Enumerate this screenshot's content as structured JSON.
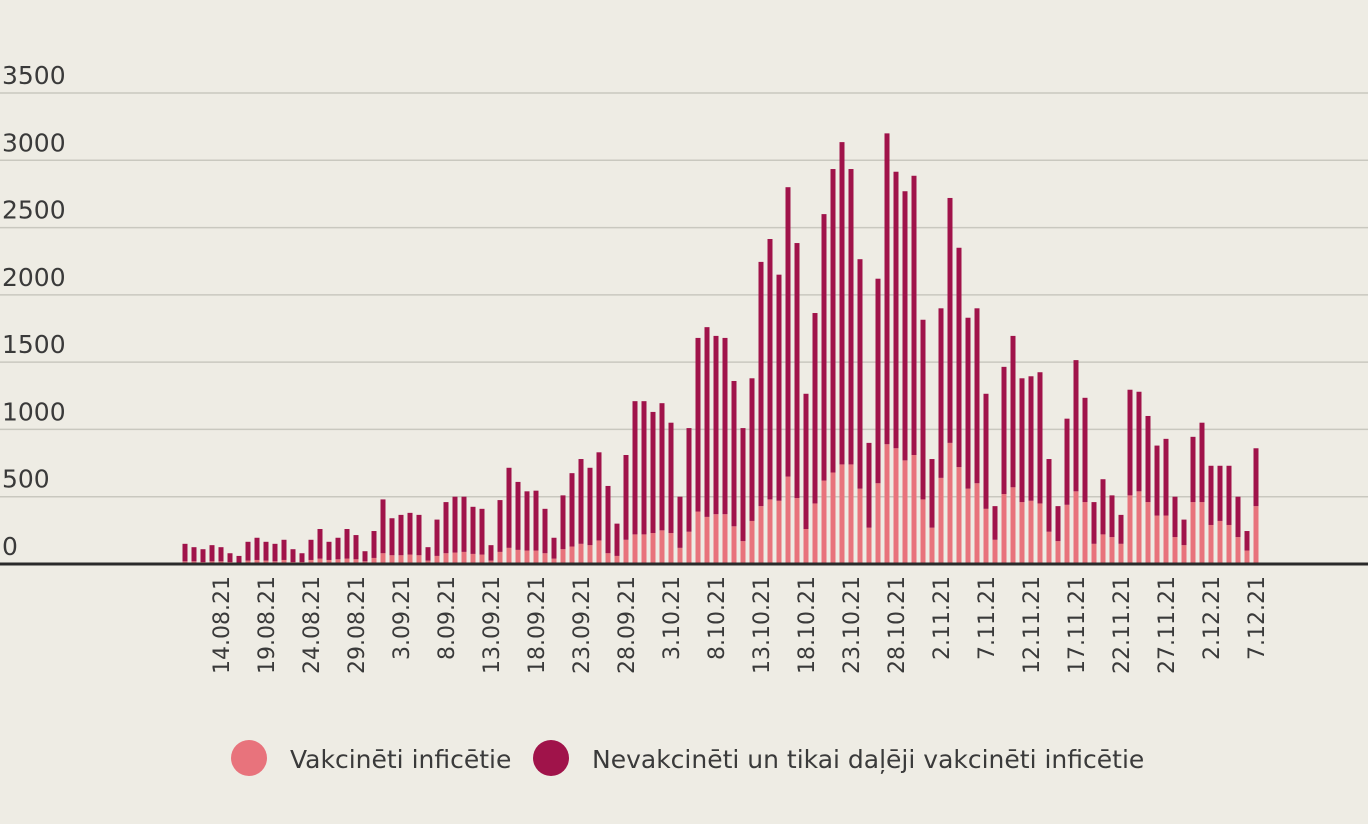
{
  "chart_data": {
    "type": "stacked_bar",
    "categories": [
      null,
      null,
      null,
      null,
      "14.08.21",
      null,
      null,
      null,
      null,
      "19.08.21",
      null,
      null,
      null,
      null,
      "24.08.21",
      null,
      null,
      null,
      null,
      "29.08.21",
      null,
      null,
      null,
      null,
      "3.09.21",
      null,
      null,
      null,
      null,
      "8.09.21",
      null,
      null,
      null,
      null,
      "13.09.21",
      null,
      null,
      null,
      null,
      "18.09.21",
      null,
      null,
      null,
      null,
      "23.09.21",
      null,
      null,
      null,
      null,
      "28.09.21",
      null,
      null,
      null,
      null,
      "3.10.21",
      null,
      null,
      null,
      null,
      "8.10.21",
      null,
      null,
      null,
      null,
      "13.10.21",
      null,
      null,
      null,
      null,
      "18.10.21",
      null,
      null,
      null,
      null,
      "23.10.21",
      null,
      null,
      null,
      null,
      "28.10.21",
      null,
      null,
      null,
      null,
      "2.11.21",
      null,
      null,
      null,
      null,
      "7.11.21",
      null,
      null,
      null,
      null,
      "12.11.21",
      null,
      null,
      null,
      null,
      "17.11.21",
      null,
      null,
      null,
      null,
      "22.11.21",
      null,
      null,
      null,
      null,
      "27.11.21",
      null,
      null,
      null,
      null,
      "2.12.21",
      null,
      null,
      null,
      null,
      "7.12.21"
    ],
    "series": [
      {
        "name": "Vakcinēti inficētie",
        "color": "#e8737c",
        "values": [
          20,
          20,
          15,
          20,
          20,
          15,
          10,
          25,
          30,
          25,
          20,
          30,
          15,
          15,
          30,
          40,
          30,
          35,
          40,
          35,
          20,
          45,
          80,
          65,
          65,
          70,
          65,
          25,
          60,
          80,
          85,
          90,
          75,
          70,
          25,
          90,
          120,
          105,
          100,
          100,
          80,
          40,
          110,
          130,
          150,
          140,
          175,
          80,
          60,
          180,
          220,
          220,
          230,
          250,
          230,
          120,
          240,
          390,
          350,
          370,
          370,
          280,
          170,
          320,
          430,
          480,
          470,
          650,
          490,
          260,
          450,
          620,
          680,
          740,
          740,
          560,
          270,
          600,
          890,
          860,
          770,
          810,
          480,
          270,
          640,
          900,
          720,
          560,
          600,
          410,
          180,
          520,
          570,
          460,
          470,
          450,
          240,
          170,
          440,
          540,
          460,
          150,
          220,
          200,
          150,
          510,
          540,
          460,
          360,
          360,
          200,
          140,
          460,
          460,
          290,
          320,
          290,
          200,
          100,
          430
        ]
      },
      {
        "name": "Nevakcinēti un tikai daļēji vakcinēti inficētie",
        "color": "#a0134a",
        "values": [
          130,
          105,
          95,
          120,
          105,
          65,
          50,
          140,
          165,
          140,
          130,
          150,
          95,
          65,
          150,
          220,
          135,
          160,
          220,
          180,
          75,
          200,
          400,
          275,
          300,
          310,
          300,
          100,
          270,
          380,
          415,
          410,
          350,
          340,
          115,
          385,
          595,
          505,
          440,
          445,
          330,
          155,
          400,
          545,
          630,
          575,
          655,
          500,
          240,
          630,
          990,
          990,
          900,
          945,
          820,
          380,
          770,
          1290,
          1410,
          1325,
          1310,
          1080,
          840,
          1060,
          1815,
          1935,
          1680,
          2150,
          1895,
          1005,
          1415,
          1980,
          2255,
          2395,
          2195,
          1705,
          630,
          1520,
          2310,
          2055,
          2000,
          2075,
          1335,
          510,
          1260,
          1820,
          1630,
          1270,
          1300,
          855,
          250,
          945,
          1125,
          920,
          925,
          975,
          540,
          260,
          640,
          975,
          775,
          310,
          410,
          310,
          215,
          785,
          740,
          640,
          520,
          570,
          300,
          190,
          485,
          590,
          440,
          410,
          440,
          300,
          145,
          430
        ]
      }
    ],
    "ylim": [
      0,
      3500
    ],
    "yticks": [
      0,
      500,
      1000,
      1500,
      2000,
      2500,
      3000,
      3500
    ],
    "grid": true,
    "legend": "bottom"
  }
}
